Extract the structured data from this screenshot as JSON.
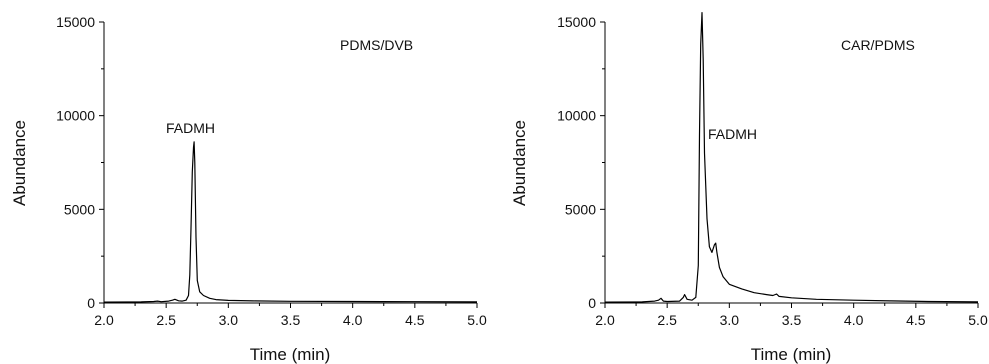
{
  "chart_data": [
    {
      "type": "line",
      "xlabel": "Time (min)",
      "ylabel": "Abundance",
      "xlim": [
        2.0,
        5.0
      ],
      "ylim": [
        0,
        15000
      ],
      "xticks": [
        "2.0",
        "2.5",
        "3.0",
        "3.5",
        "4.0",
        "4.5",
        "5.0"
      ],
      "yticks": [
        "0",
        "5000",
        "10000",
        "15000"
      ],
      "grid": false,
      "annotations": [
        "PDMS/DVB",
        "FADMH"
      ],
      "series": [
        {
          "x": [
            2.0,
            2.3,
            2.4,
            2.43,
            2.46,
            2.52,
            2.55,
            2.57,
            2.6,
            2.63,
            2.66,
            2.68,
            2.69,
            2.7,
            2.71,
            2.72,
            2.725,
            2.73,
            2.74,
            2.75,
            2.77,
            2.8,
            2.85,
            2.9,
            3.0,
            3.2,
            3.5,
            4.0,
            4.5,
            5.0
          ],
          "y": [
            50,
            60,
            80,
            100,
            70,
            100,
            150,
            200,
            120,
            100,
            150,
            400,
            1500,
            4000,
            7000,
            8300,
            8600,
            7500,
            3500,
            1200,
            600,
            400,
            250,
            180,
            140,
            110,
            90,
            80,
            70,
            60
          ]
        }
      ]
    },
    {
      "type": "line",
      "xlabel": "Time (min)",
      "ylabel": "Abundance",
      "xlim": [
        2.0,
        5.0
      ],
      "ylim": [
        0,
        15000
      ],
      "xticks": [
        "2.0",
        "2.5",
        "3.0",
        "3.5",
        "4.0",
        "4.5",
        "5.0"
      ],
      "yticks": [
        "0",
        "5000",
        "10000",
        "15000"
      ],
      "grid": false,
      "annotations": [
        "CAR/PDMS",
        "FADMH"
      ],
      "series": [
        {
          "x": [
            2.0,
            2.3,
            2.4,
            2.43,
            2.45,
            2.47,
            2.5,
            2.6,
            2.63,
            2.64,
            2.66,
            2.7,
            2.73,
            2.75,
            2.76,
            2.77,
            2.78,
            2.79,
            2.8,
            2.82,
            2.84,
            2.86,
            2.88,
            2.89,
            2.9,
            2.92,
            2.95,
            3.0,
            3.1,
            3.2,
            3.3,
            3.35,
            3.38,
            3.4,
            3.5,
            3.7,
            4.0,
            4.3,
            4.6,
            5.0
          ],
          "y": [
            50,
            60,
            100,
            150,
            250,
            100,
            80,
            100,
            300,
            450,
            200,
            150,
            300,
            2000,
            9000,
            13800,
            15500,
            13000,
            8000,
            4500,
            3000,
            2700,
            3100,
            3200,
            2700,
            1900,
            1400,
            1000,
            750,
            550,
            450,
            400,
            480,
            350,
            280,
            200,
            150,
            110,
            80,
            60
          ]
        }
      ]
    }
  ]
}
